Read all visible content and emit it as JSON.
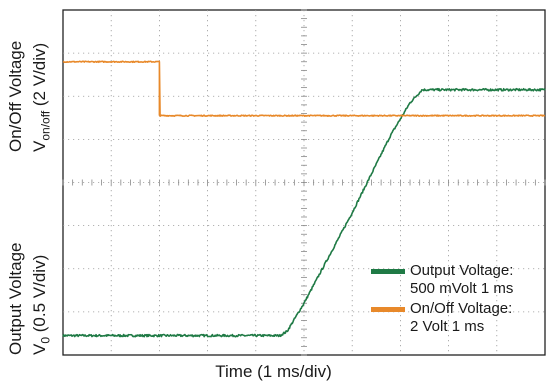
{
  "chart_data": {
    "type": "line",
    "xlabel": "Time (1 ms/div)",
    "ylabel_top": {
      "main": "On/Off Voltage",
      "sym": "V",
      "sub": "on/off",
      "unit": "(2 V/div)"
    },
    "ylabel_bottom": {
      "main": "Output Voltage",
      "sym": "V",
      "sub": "0",
      "unit": "(0.5 V/div)"
    },
    "grid": true,
    "divisions": {
      "x": 10,
      "y": 8
    },
    "xlim": [
      0,
      10
    ],
    "series": [
      {
        "key": "output",
        "color": "#1f7a45",
        "noise": 0.025,
        "points": [
          [
            0,
            0.45
          ],
          [
            4.5,
            0.45
          ],
          [
            4.65,
            0.55
          ],
          [
            5.0,
            1.2
          ],
          [
            6.0,
            3.3
          ],
          [
            6.8,
            5.1
          ],
          [
            7.2,
            5.85
          ],
          [
            7.45,
            6.15
          ],
          [
            10,
            6.15
          ]
        ]
      },
      {
        "key": "onoff",
        "color": "#e8892a",
        "noise": 0.012,
        "points": [
          [
            0,
            6.8
          ],
          [
            2.0,
            6.8
          ],
          [
            2.0,
            5.55
          ],
          [
            10,
            5.55
          ]
        ]
      }
    ],
    "legend": [
      {
        "label": "Output Voltage:",
        "detail": "500 mVolt 1 ms",
        "color": "#1f7a45"
      },
      {
        "label": "On/Off Voltage:",
        "detail": "2 Volt 1 ms",
        "color": "#e8892a"
      }
    ]
  }
}
